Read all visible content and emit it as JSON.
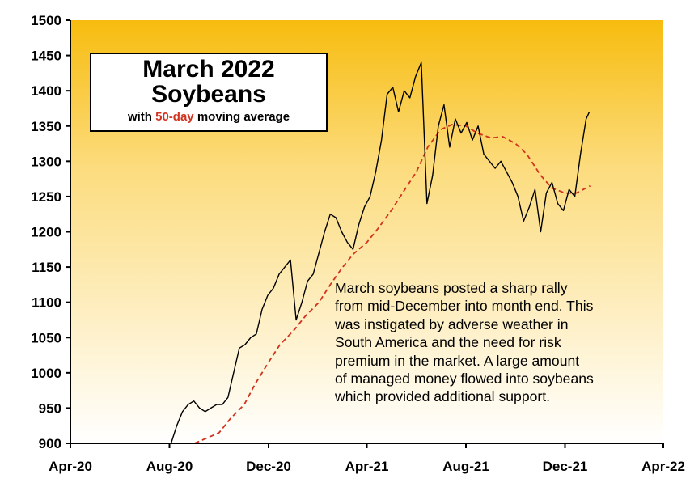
{
  "chart_data": {
    "type": "line",
    "title_lines": [
      "March 2022",
      "Soybeans"
    ],
    "subtitle": {
      "pre": "with ",
      "highlight": "50-day",
      "post": " moving average"
    },
    "xlabel": "",
    "ylabel": "",
    "x_ticks": [
      "Apr-20",
      "Aug-20",
      "Dec-20",
      "Apr-21",
      "Aug-21",
      "Dec-21",
      "Apr-22"
    ],
    "x_range": [
      "Apr-20",
      "Apr-22"
    ],
    "ylim": [
      900,
      1500
    ],
    "y_ticks": [
      900,
      950,
      1000,
      1050,
      1100,
      1150,
      1200,
      1250,
      1300,
      1350,
      1400,
      1450,
      1500
    ],
    "grid": false,
    "series": [
      {
        "style": "price",
        "color": "#000000",
        "points": [
          [
            "Aug-03-20",
            900
          ],
          [
            "Aug-10-20",
            925
          ],
          [
            "Aug-17-20",
            945
          ],
          [
            "Aug-24-20",
            955
          ],
          [
            "Aug-31-20",
            960
          ],
          [
            "Sep-07-20",
            950
          ],
          [
            "Sep-14-20",
            945
          ],
          [
            "Sep-21-20",
            950
          ],
          [
            "Sep-28-20",
            955
          ],
          [
            "Oct-05-20",
            955
          ],
          [
            "Oct-12-20",
            965
          ],
          [
            "Oct-19-20",
            1000
          ],
          [
            "Oct-26-20",
            1035
          ],
          [
            "Nov-02-20",
            1040
          ],
          [
            "Nov-09-20",
            1050
          ],
          [
            "Nov-16-20",
            1055
          ],
          [
            "Nov-23-20",
            1090
          ],
          [
            "Nov-30-20",
            1110
          ],
          [
            "Dec-07-20",
            1120
          ],
          [
            "Dec-14-20",
            1140
          ],
          [
            "Dec-21-20",
            1150
          ],
          [
            "Dec-28-20",
            1160
          ],
          [
            "Jan-04-21",
            1075
          ],
          [
            "Jan-11-21",
            1100
          ],
          [
            "Jan-18-21",
            1130
          ],
          [
            "Jan-25-21",
            1140
          ],
          [
            "Feb-01-21",
            1170
          ],
          [
            "Feb-08-21",
            1200
          ],
          [
            "Feb-15-21",
            1225
          ],
          [
            "Feb-22-21",
            1220
          ],
          [
            "Mar-01-21",
            1200
          ],
          [
            "Mar-08-21",
            1185
          ],
          [
            "Mar-15-21",
            1175
          ],
          [
            "Mar-22-21",
            1210
          ],
          [
            "Mar-29-21",
            1235
          ],
          [
            "Apr-05-21",
            1250
          ],
          [
            "Apr-12-21",
            1285
          ],
          [
            "Apr-19-21",
            1330
          ],
          [
            "Apr-26-21",
            1395
          ],
          [
            "May-03-21",
            1405
          ],
          [
            "May-10-21",
            1370
          ],
          [
            "May-17-21",
            1400
          ],
          [
            "May-24-21",
            1390
          ],
          [
            "May-31-21",
            1420
          ],
          [
            "Jun-07-21",
            1440
          ],
          [
            "Jun-14-21",
            1240
          ],
          [
            "Jun-21-21",
            1280
          ],
          [
            "Jun-28-21",
            1350
          ],
          [
            "Jul-05-21",
            1380
          ],
          [
            "Jul-12-21",
            1320
          ],
          [
            "Jul-19-21",
            1360
          ],
          [
            "Jul-26-21",
            1340
          ],
          [
            "Aug-02-21",
            1355
          ],
          [
            "Aug-09-21",
            1330
          ],
          [
            "Aug-16-21",
            1350
          ],
          [
            "Aug-23-21",
            1310
          ],
          [
            "Aug-30-21",
            1300
          ],
          [
            "Sep-06-21",
            1290
          ],
          [
            "Sep-13-21",
            1300
          ],
          [
            "Sep-20-21",
            1285
          ],
          [
            "Sep-27-21",
            1270
          ],
          [
            "Oct-04-21",
            1250
          ],
          [
            "Oct-11-21",
            1215
          ],
          [
            "Oct-18-21",
            1235
          ],
          [
            "Oct-25-21",
            1260
          ],
          [
            "Nov-01-21",
            1200
          ],
          [
            "Nov-08-21",
            1255
          ],
          [
            "Nov-15-21",
            1270
          ],
          [
            "Nov-22-21",
            1240
          ],
          [
            "Nov-29-21",
            1230
          ],
          [
            "Dec-06-21",
            1260
          ],
          [
            "Dec-13-21",
            1250
          ],
          [
            "Dec-20-21",
            1310
          ],
          [
            "Dec-27-21",
            1360
          ],
          [
            "Dec-31-21",
            1370
          ]
        ]
      },
      {
        "style": "moving-average",
        "color": "#d2331f",
        "points": [
          [
            "Sep-01-20",
            900
          ],
          [
            "Oct-01-20",
            915
          ],
          [
            "Oct-15-20",
            935
          ],
          [
            "Nov-01-20",
            955
          ],
          [
            "Nov-15-20",
            985
          ],
          [
            "Dec-01-20",
            1015
          ],
          [
            "Dec-15-20",
            1040
          ],
          [
            "Jan-01-21",
            1060
          ],
          [
            "Jan-15-21",
            1080
          ],
          [
            "Feb-01-21",
            1100
          ],
          [
            "Feb-15-21",
            1125
          ],
          [
            "Mar-01-21",
            1148
          ],
          [
            "Mar-15-21",
            1168
          ],
          [
            "Apr-01-21",
            1185
          ],
          [
            "Apr-15-21",
            1205
          ],
          [
            "May-01-21",
            1230
          ],
          [
            "May-15-21",
            1255
          ],
          [
            "Jun-01-21",
            1285
          ],
          [
            "Jun-15-21",
            1320
          ],
          [
            "Jul-01-21",
            1345
          ],
          [
            "Jul-15-21",
            1352
          ],
          [
            "Aug-01-21",
            1350
          ],
          [
            "Aug-15-21",
            1340
          ],
          [
            "Sep-01-21",
            1333
          ],
          [
            "Sep-15-21",
            1335
          ],
          [
            "Oct-01-21",
            1325
          ],
          [
            "Oct-15-21",
            1310
          ],
          [
            "Nov-01-21",
            1280
          ],
          [
            "Nov-15-21",
            1262
          ],
          [
            "Dec-01-21",
            1255
          ],
          [
            "Dec-15-21",
            1255
          ],
          [
            "Jan-01-22",
            1265
          ]
        ]
      }
    ]
  },
  "annotation_lines": [
    "March soybeans posted a sharp rally",
    "from mid-December into month end. This",
    "was instigated by adverse weather in",
    "South America and the need for risk",
    "premium in the market. A large amount",
    "of managed money flowed into soybeans",
    "which provided additional support."
  ],
  "colors": {
    "gradient_top": "#f7bc0e",
    "gradient_mid": "#fcdc7e",
    "gradient_bottom": "#ffffff",
    "moving_average": "#d2331f",
    "price": "#000000"
  }
}
